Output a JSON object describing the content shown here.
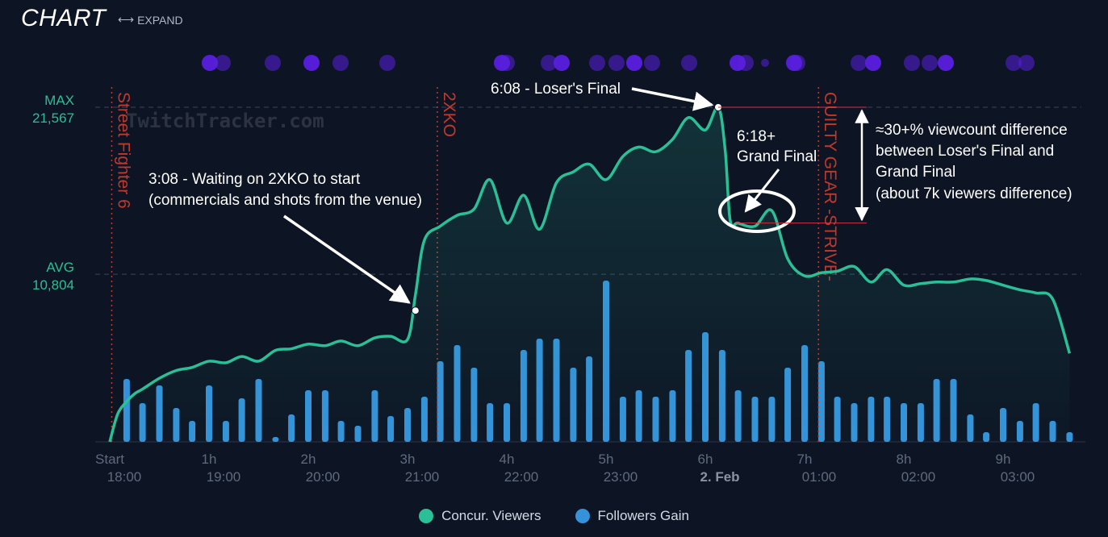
{
  "header": {
    "title": "CHART",
    "expand_label": "EXPAND",
    "expand_icon": "left-right-arrow-icon"
  },
  "watermark": "TwitchTracker.com",
  "colors": {
    "viewers": "#2bbf98",
    "followers": "#3592da",
    "event_marker": "#c0392b",
    "annotation": "#ffffff",
    "background": "#0d1424",
    "dot": "#5a1fe0"
  },
  "legend": [
    {
      "label": "Concur. Viewers",
      "color": "#2bbf98"
    },
    {
      "label": "Followers Gain",
      "color": "#3592da"
    }
  ],
  "chart_data": {
    "type": "line+bar",
    "x_unit": "hours since stream start",
    "xlim": [
      0,
      9.7
    ],
    "ylim_viewers": [
      0,
      21567
    ],
    "x_ticks": [
      {
        "x": 0,
        "top": "Start",
        "bottom": "18:00"
      },
      {
        "x": 1,
        "top": "1h",
        "bottom": "19:00"
      },
      {
        "x": 2,
        "top": "2h",
        "bottom": "20:00"
      },
      {
        "x": 3,
        "top": "3h",
        "bottom": "21:00"
      },
      {
        "x": 4,
        "top": "4h",
        "bottom": "22:00"
      },
      {
        "x": 5,
        "top": "5h",
        "bottom": "23:00"
      },
      {
        "x": 6,
        "top": "6h",
        "bottom": "2. Feb",
        "bold": true
      },
      {
        "x": 7,
        "top": "7h",
        "bottom": "01:00"
      },
      {
        "x": 8,
        "top": "8h",
        "bottom": "02:00"
      },
      {
        "x": 9,
        "top": "9h",
        "bottom": "03:00"
      }
    ],
    "reference_lines": [
      {
        "label": "MAX",
        "value_label": "21,567",
        "value": 21567
      },
      {
        "label": "AVG",
        "value_label": "10,804",
        "value": 10804
      }
    ],
    "events": [
      {
        "x": 0.02,
        "label": "Street Fighter 6"
      },
      {
        "x": 3.3,
        "label": "2XKO"
      },
      {
        "x": 7.14,
        "label": "GUILTY GEAR -STRIVE-"
      }
    ],
    "series": [
      {
        "name": "Concur. Viewers",
        "x": [
          0,
          0.08,
          0.17,
          0.25,
          0.33,
          0.5,
          0.67,
          0.83,
          1.0,
          1.17,
          1.33,
          1.5,
          1.67,
          1.83,
          2.0,
          2.17,
          2.33,
          2.5,
          2.67,
          2.83,
          3.0,
          3.08,
          3.17,
          3.33,
          3.5,
          3.67,
          3.83,
          4.0,
          4.17,
          4.33,
          4.5,
          4.67,
          4.83,
          5.0,
          5.17,
          5.33,
          5.5,
          5.67,
          5.83,
          6.0,
          6.13,
          6.2,
          6.25,
          6.33,
          6.5,
          6.67,
          6.83,
          7.0,
          7.17,
          7.33,
          7.5,
          7.67,
          7.83,
          8.0,
          8.17,
          8.33,
          8.5,
          8.67,
          8.83,
          9.0,
          9.17,
          9.33,
          9.5,
          9.67
        ],
        "values": [
          0,
          1800,
          2600,
          3100,
          3400,
          4100,
          4600,
          4800,
          5200,
          5100,
          5500,
          5200,
          5900,
          6000,
          6300,
          6200,
          6500,
          6200,
          6700,
          6800,
          6600,
          9500,
          13000,
          13900,
          14600,
          15000,
          16900,
          14100,
          15900,
          13700,
          16700,
          17400,
          17900,
          16900,
          18400,
          19000,
          18700,
          19500,
          20900,
          20100,
          21567,
          18800,
          14300,
          14100,
          13900,
          14900,
          11800,
          10700,
          10900,
          11000,
          11300,
          10300,
          11100,
          10100,
          10200,
          10300,
          10300,
          10500,
          10400,
          10100,
          9800,
          9600,
          9200,
          5700
        ]
      },
      {
        "name": "Followers Gain",
        "x": [
          0.17,
          0.33,
          0.5,
          0.67,
          0.83,
          1.0,
          1.17,
          1.33,
          1.5,
          1.67,
          1.83,
          2.0,
          2.17,
          2.33,
          2.5,
          2.67,
          2.83,
          3.0,
          3.17,
          3.33,
          3.5,
          3.67,
          3.83,
          4.0,
          4.17,
          4.33,
          4.5,
          4.67,
          4.83,
          5.0,
          5.17,
          5.33,
          5.5,
          5.67,
          5.83,
          6.0,
          6.17,
          6.33,
          6.5,
          6.67,
          6.83,
          7.0,
          7.17,
          7.33,
          7.5,
          7.67,
          7.83,
          8.0,
          8.17,
          8.33,
          8.5,
          8.67,
          8.83,
          9.0,
          9.17,
          9.33,
          9.5,
          9.67
        ],
        "values": [
          39,
          24,
          35,
          21,
          13,
          35,
          13,
          27,
          39,
          3,
          17,
          32,
          32,
          13,
          10,
          32,
          16,
          21,
          28,
          50,
          60,
          46,
          24,
          24,
          57,
          64,
          64,
          46,
          53,
          100,
          28,
          32,
          28,
          32,
          57,
          68,
          57,
          32,
          28,
          28,
          46,
          60,
          50,
          28,
          24,
          28,
          28,
          24,
          24,
          39,
          39,
          17,
          6,
          21,
          13,
          24,
          13,
          6
        ]
      }
    ],
    "annotations": [
      {
        "text": "3:08 - Waiting on 2XKO to start",
        "text2": "(commercials and shots from the venue)"
      },
      {
        "text": "6:08 - Loser's Final"
      },
      {
        "text": "6:18+",
        "text2": "Grand Final"
      },
      {
        "text": "≈30+% viewcount difference",
        "text2": "between Loser's Final and",
        "text3": "Grand Final",
        "text4": "(about 7k viewers difference)"
      }
    ]
  }
}
